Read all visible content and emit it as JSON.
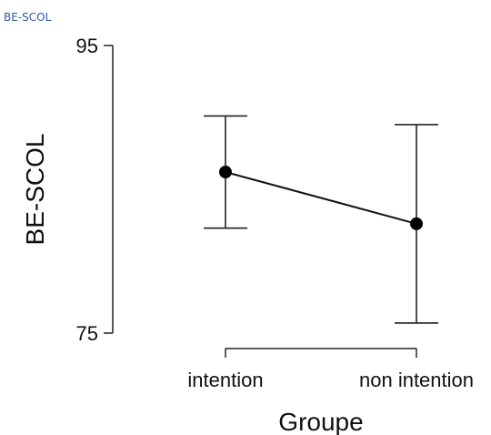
{
  "header": {
    "corner_label": "BE-SCOL"
  },
  "chart_data": {
    "type": "line",
    "title": "",
    "xlabel": "Groupe",
    "ylabel": "BE-SCOL",
    "categories": [
      "intention",
      "non intention"
    ],
    "ylim": [
      75,
      95
    ],
    "yticks": [
      75,
      95
    ],
    "series": [
      {
        "values": [
          86.2,
          82.6
        ],
        "error_lower": [
          82.3,
          75.7
        ],
        "error_upper": [
          90.1,
          89.5
        ]
      }
    ],
    "grid": false,
    "legend": "none"
  }
}
